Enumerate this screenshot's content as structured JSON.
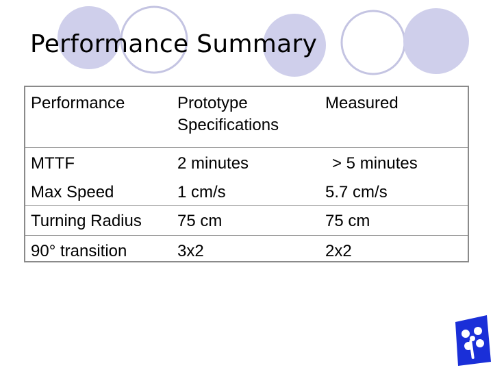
{
  "slide": {
    "title": "Performance Summary"
  },
  "table": {
    "headers": {
      "col1": "Performance",
      "col2_line1": "Prototype",
      "col2_line2": "Specifications",
      "col3": "Measured"
    },
    "rows": [
      {
        "metric": "MTTF",
        "spec": "2 minutes",
        "measured": "> 5 minutes"
      },
      {
        "metric": "Max Speed",
        "spec": "1 cm/s",
        "measured": "5.7 cm/s"
      },
      {
        "metric": "Turning Radius",
        "spec": "75 cm",
        "measured": "75 cm"
      },
      {
        "metric": "90° transition",
        "spec": "3x2",
        "measured": "2x2"
      }
    ]
  },
  "colors": {
    "circle_fill": "#cfcfeb",
    "circle_outline": "#c4c4e2",
    "table_border": "#8a8a8a",
    "logo_blue": "#1a2fd8"
  },
  "icons": {
    "logo": "propeller-logo-icon"
  }
}
